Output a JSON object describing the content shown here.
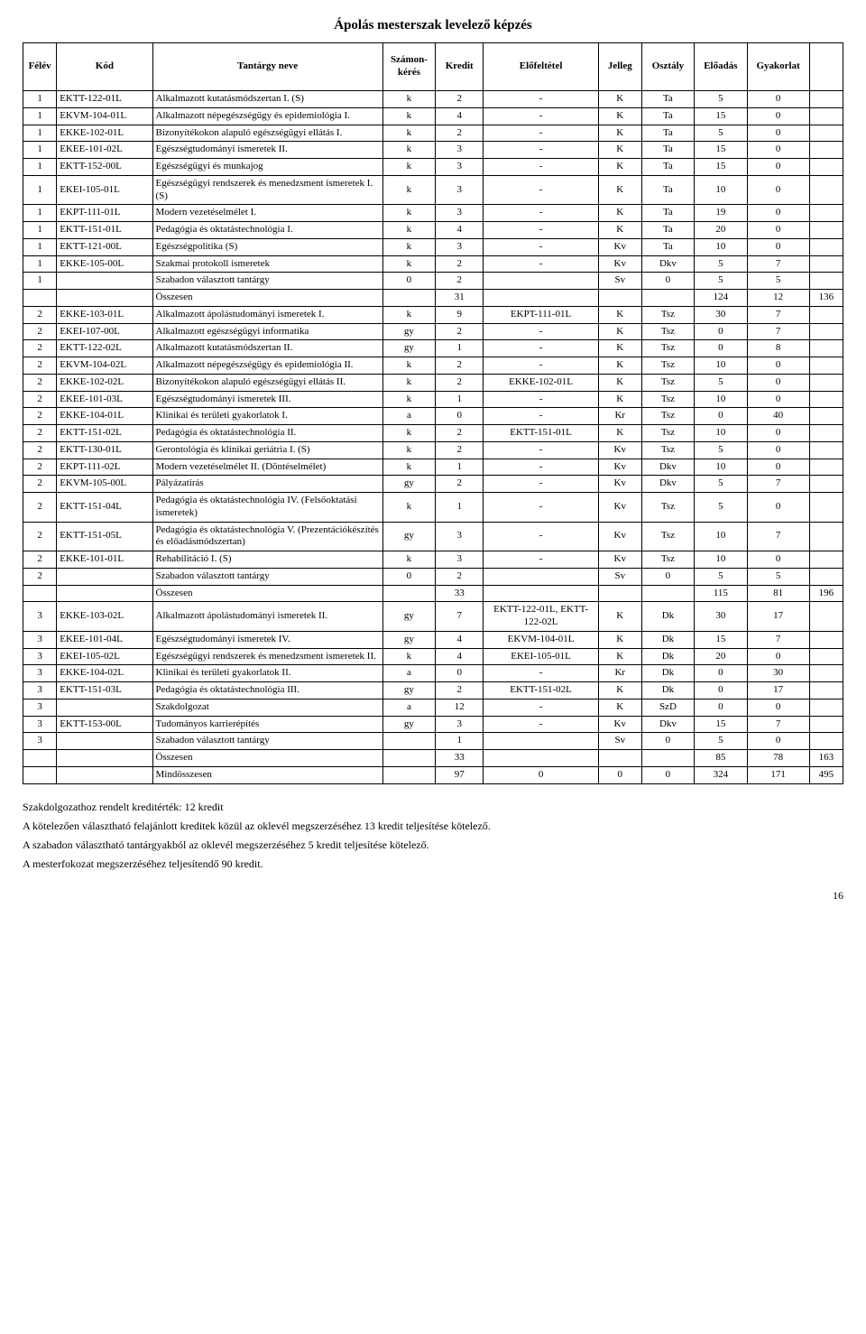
{
  "title": "Ápolás mesterszak levelező képzés",
  "headers": [
    "Félév",
    "Kód",
    "Tantárgy neve",
    "Számon-kérés",
    "Kredit",
    "Előfeltétel",
    "Jelleg",
    "Osztály",
    "Előadás",
    "Gyakorlat",
    ""
  ],
  "rows": [
    {
      "f": "1",
      "kod": "EKTT-122-01L",
      "nev": "Alkalmazott kutatásmódszertan I. (S)",
      "szk": "k",
      "kr": "2",
      "elo": "-",
      "j": "K",
      "o": "Ta",
      "e": "5",
      "g": "0",
      "x": ""
    },
    {
      "f": "1",
      "kod": "EKVM-104-01L",
      "nev": "Alkalmazott népegészségügy és epidemiológia I.",
      "szk": "k",
      "kr": "4",
      "elo": "-",
      "j": "K",
      "o": "Ta",
      "e": "15",
      "g": "0",
      "x": ""
    },
    {
      "f": "1",
      "kod": "EKKE-102-01L",
      "nev": "Bizonyítékokon alapuló egészségügyi ellátás I.",
      "szk": "k",
      "kr": "2",
      "elo": "-",
      "j": "K",
      "o": "Ta",
      "e": "5",
      "g": "0",
      "x": ""
    },
    {
      "f": "1",
      "kod": "EKEE-101-02L",
      "nev": "Egészségtudományi ismeretek II.",
      "szk": "k",
      "kr": "3",
      "elo": "-",
      "j": "K",
      "o": "Ta",
      "e": "15",
      "g": "0",
      "x": ""
    },
    {
      "f": "1",
      "kod": "EKTT-152-00L",
      "nev": "Egészségügyi és munkajog",
      "szk": "k",
      "kr": "3",
      "elo": "-",
      "j": "K",
      "o": "Ta",
      "e": "15",
      "g": "0",
      "x": ""
    },
    {
      "f": "1",
      "kod": "EKEI-105-01L",
      "nev": "Egészségügyi rendszerek és menedzsment ismeretek I. (S)",
      "szk": "k",
      "kr": "3",
      "elo": "-",
      "j": "K",
      "o": "Ta",
      "e": "10",
      "g": "0",
      "x": ""
    },
    {
      "f": "1",
      "kod": "EKPT-111-01L",
      "nev": "Modern vezetéselmélet I.",
      "szk": "k",
      "kr": "3",
      "elo": "-",
      "j": "K",
      "o": "Ta",
      "e": "19",
      "g": "0",
      "x": ""
    },
    {
      "f": "1",
      "kod": "EKTT-151-01L",
      "nev": "Pedagógia és oktatástechnológia I.",
      "szk": "k",
      "kr": "4",
      "elo": "-",
      "j": "K",
      "o": "Ta",
      "e": "20",
      "g": "0",
      "x": ""
    },
    {
      "f": "1",
      "kod": "EKTT-121-00L",
      "nev": "Egészségpolitika (S)",
      "szk": "k",
      "kr": "3",
      "elo": "-",
      "j": "Kv",
      "o": "Ta",
      "e": "10",
      "g": "0",
      "x": ""
    },
    {
      "f": "1",
      "kod": "EKKE-105-00L",
      "nev": "Szakmai protokoll ismeretek",
      "szk": "k",
      "kr": "2",
      "elo": "-",
      "j": "Kv",
      "o": "Dkv",
      "e": "5",
      "g": "7",
      "x": ""
    },
    {
      "f": "1",
      "kod": "",
      "nev": "Szabadon választott tantárgy",
      "szk": "0",
      "kr": "2",
      "elo": "",
      "j": "Sv",
      "o": "0",
      "e": "5",
      "g": "5",
      "x": ""
    },
    {
      "sum": true,
      "nev": "Összesen",
      "kr": "31",
      "e": "124",
      "g": "12",
      "x": "136"
    },
    {
      "f": "2",
      "kod": "EKKE-103-01L",
      "nev": "Alkalmazott ápolástudományi ismeretek I.",
      "szk": "k",
      "kr": "9",
      "elo": "EKPT-111-01L",
      "j": "K",
      "o": "Tsz",
      "e": "30",
      "g": "7",
      "x": ""
    },
    {
      "f": "2",
      "kod": "EKEI-107-00L",
      "nev": "Alkalmazott egészségügyi informatika",
      "szk": "gy",
      "kr": "2",
      "elo": "-",
      "j": "K",
      "o": "Tsz",
      "e": "0",
      "g": "7",
      "x": ""
    },
    {
      "f": "2",
      "kod": "EKTT-122-02L",
      "nev": "Alkalmazott kutatásmódszertan II.",
      "szk": "gy",
      "kr": "1",
      "elo": "-",
      "j": "K",
      "o": "Tsz",
      "e": "0",
      "g": "8",
      "x": ""
    },
    {
      "f": "2",
      "kod": "EKVM-104-02L",
      "nev": "Alkalmazott népegészségügy és epidemiológia II.",
      "szk": "k",
      "kr": "2",
      "elo": "-",
      "j": "K",
      "o": "Tsz",
      "e": "10",
      "g": "0",
      "x": ""
    },
    {
      "f": "2",
      "kod": "EKKE-102-02L",
      "nev": "Bizonyítékokon alapuló egészségügyi ellátás II.",
      "szk": "k",
      "kr": "2",
      "elo": "EKKE-102-01L",
      "j": "K",
      "o": "Tsz",
      "e": "5",
      "g": "0",
      "x": ""
    },
    {
      "f": "2",
      "kod": "EKEE-101-03L",
      "nev": "Egészségtudományi ismeretek III.",
      "szk": "k",
      "kr": "1",
      "elo": "-",
      "j": "K",
      "o": "Tsz",
      "e": "10",
      "g": "0",
      "x": ""
    },
    {
      "f": "2",
      "kod": "EKKE-104-01L",
      "nev": "Klinikai és területi gyakorlatok I.",
      "szk": "a",
      "kr": "0",
      "elo": "-",
      "j": "Kr",
      "o": "Tsz",
      "e": "0",
      "g": "40",
      "x": ""
    },
    {
      "f": "2",
      "kod": "EKTT-151-02L",
      "nev": "Pedagógia és oktatástechnológia II.",
      "szk": "k",
      "kr": "2",
      "elo": "EKTT-151-01L",
      "j": "K",
      "o": "Tsz",
      "e": "10",
      "g": "0",
      "x": ""
    },
    {
      "f": "2",
      "kod": "EKTT-130-01L",
      "nev": "Gerontológia és klinikai geriátria I. (S)",
      "szk": "k",
      "kr": "2",
      "elo": "-",
      "j": "Kv",
      "o": "Tsz",
      "e": "5",
      "g": "0",
      "x": ""
    },
    {
      "f": "2",
      "kod": "EKPT-111-02L",
      "nev": "Modern vezetéselmélet II. (Döntéselmélet)",
      "szk": "k",
      "kr": "1",
      "elo": "-",
      "j": "Kv",
      "o": "Dkv",
      "e": "10",
      "g": "0",
      "x": ""
    },
    {
      "f": "2",
      "kod": "EKVM-105-00L",
      "nev": "Pályázatírás",
      "szk": "gy",
      "kr": "2",
      "elo": "-",
      "j": "Kv",
      "o": "Dkv",
      "e": "5",
      "g": "7",
      "x": ""
    },
    {
      "f": "2",
      "kod": "EKTT-151-04L",
      "nev": "Pedagógia és oktatástechnológia IV. (Felsőoktatási ismeretek)",
      "szk": "k",
      "kr": "1",
      "elo": "-",
      "j": "Kv",
      "o": "Tsz",
      "e": "5",
      "g": "0",
      "x": ""
    },
    {
      "f": "2",
      "kod": "EKTT-151-05L",
      "nev": "Pedagógia és oktatástechnológia V. (Prezentációkészítés és előadásmódszertan)",
      "szk": "gy",
      "kr": "3",
      "elo": "-",
      "j": "Kv",
      "o": "Tsz",
      "e": "10",
      "g": "7",
      "x": ""
    },
    {
      "f": "2",
      "kod": "EKKE-101-01L",
      "nev": "Rehabilitáció I. (S)",
      "szk": "k",
      "kr": "3",
      "elo": "-",
      "j": "Kv",
      "o": "Tsz",
      "e": "10",
      "g": "0",
      "x": ""
    },
    {
      "f": "2",
      "kod": "",
      "nev": "Szabadon választott tantárgy",
      "szk": "0",
      "kr": "2",
      "elo": "",
      "j": "Sv",
      "o": "0",
      "e": "5",
      "g": "5",
      "x": ""
    },
    {
      "sum": true,
      "nev": "Összesen",
      "kr": "33",
      "e": "115",
      "g": "81",
      "x": "196"
    },
    {
      "f": "3",
      "kod": "EKKE-103-02L",
      "nev": "Alkalmazott ápolástudományi ismeretek II.",
      "szk": "gy",
      "kr": "7",
      "elo": "EKTT-122-01L, EKTT-122-02L",
      "j": "K",
      "o": "Dk",
      "e": "30",
      "g": "17",
      "x": ""
    },
    {
      "f": "3",
      "kod": "EKEE-101-04L",
      "nev": "Egészségtudományi ismeretek IV.",
      "szk": "gy",
      "kr": "4",
      "elo": "EKVM-104-01L",
      "j": "K",
      "o": "Dk",
      "e": "15",
      "g": "7",
      "x": ""
    },
    {
      "f": "3",
      "kod": "EKEI-105-02L",
      "nev": "Egészségügyi rendszerek és menedzsment ismeretek II.",
      "szk": "k",
      "kr": "4",
      "elo": "EKEI-105-01L",
      "j": "K",
      "o": "Dk",
      "e": "20",
      "g": "0",
      "x": ""
    },
    {
      "f": "3",
      "kod": "EKKE-104-02L",
      "nev": "Klinikai és területi gyakorlatok II.",
      "szk": "a",
      "kr": "0",
      "elo": "-",
      "j": "Kr",
      "o": "Dk",
      "e": "0",
      "g": "30",
      "x": ""
    },
    {
      "f": "3",
      "kod": "EKTT-151-03L",
      "nev": "Pedagógia és oktatástechnológia III.",
      "szk": "gy",
      "kr": "2",
      "elo": "EKTT-151-02L",
      "j": "K",
      "o": "Dk",
      "e": "0",
      "g": "17",
      "x": ""
    },
    {
      "f": "3",
      "kod": "",
      "nev": "Szakdolgozat",
      "szk": "a",
      "kr": "12",
      "elo": "-",
      "j": "K",
      "o": "SzD",
      "e": "0",
      "g": "0",
      "x": ""
    },
    {
      "f": "3",
      "kod": "EKTT-153-00L",
      "nev": "Tudományos karrierépítés",
      "szk": "gy",
      "kr": "3",
      "elo": "-",
      "j": "Kv",
      "o": "Dkv",
      "e": "15",
      "g": "7",
      "x": ""
    },
    {
      "f": "3",
      "kod": "",
      "nev": "Szabadon választott tantárgy",
      "szk": "",
      "kr": "1",
      "elo": "",
      "j": "Sv",
      "o": "0",
      "e": "5",
      "g": "0",
      "x": ""
    },
    {
      "sum": true,
      "nev": "Összesen",
      "kr": "33",
      "e": "85",
      "g": "78",
      "x": "163"
    },
    {
      "sum": true,
      "nev": "Mindösszesen",
      "kr": "97",
      "elo": "0",
      "j": "0",
      "o": "0",
      "e": "324",
      "g": "171",
      "x": "495"
    }
  ],
  "notes": [
    "Szakdolgozathoz rendelt kreditérték: 12 kredit",
    "A kötelezően választható felajánlott kreditek közül az oklevél megszerzéséhez 13 kredit teljesítése kötelező.",
    "A szabadon választható tantárgyakból az oklevél megszerzéséhez 5 kredit teljesítése kötelező.",
    "A mesterfokozat megszerzéséhez teljesítendő 90 kredit."
  ],
  "page_number": "16"
}
